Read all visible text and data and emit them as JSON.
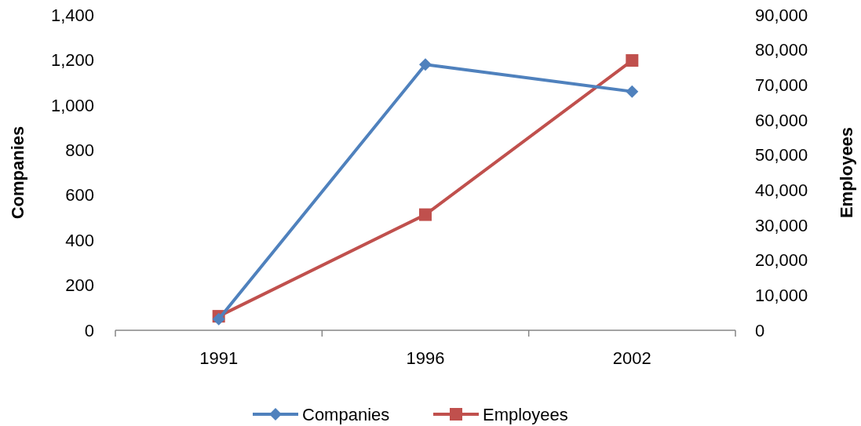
{
  "chart_data": {
    "type": "line",
    "ylabel": "Companies",
    "y2label": "Employees",
    "categories": [
      "1991",
      "1996",
      "2002"
    ],
    "series": [
      {
        "name": "Companies",
        "color": "#4f81bd",
        "values": [
          50,
          1180,
          1060
        ],
        "marker": "diamond"
      },
      {
        "name": "Employees",
        "color": "#c0504d",
        "values": [
          4000,
          33000,
          77000
        ],
        "axis": "y2",
        "marker": "square"
      }
    ],
    "ylim": [
      0,
      1400
    ],
    "yticks": [
      {
        "value": 0,
        "label": "0"
      },
      {
        "value": 200,
        "label": "200"
      },
      {
        "value": 400,
        "label": "400"
      },
      {
        "value": 600,
        "label": "600"
      },
      {
        "value": 800,
        "label": "800"
      },
      {
        "value": 1000,
        "label": "1,000"
      },
      {
        "value": 1200,
        "label": "1,200"
      },
      {
        "value": 1400,
        "label": "1,400"
      }
    ],
    "y2lim": [
      0,
      90000
    ],
    "y2ticks": [
      {
        "value": 0,
        "label": "0"
      },
      {
        "value": 10000,
        "label": "10,000"
      },
      {
        "value": 20000,
        "label": "20,000"
      },
      {
        "value": 30000,
        "label": "30,000"
      },
      {
        "value": 40000,
        "label": "40,000"
      },
      {
        "value": 50000,
        "label": "50,000"
      },
      {
        "value": 60000,
        "label": "60,000"
      },
      {
        "value": 70000,
        "label": "70,000"
      },
      {
        "value": 80000,
        "label": "80,000"
      },
      {
        "value": 90000,
        "label": "90,000"
      }
    ],
    "legend": "bottom",
    "line_style": "solid"
  }
}
